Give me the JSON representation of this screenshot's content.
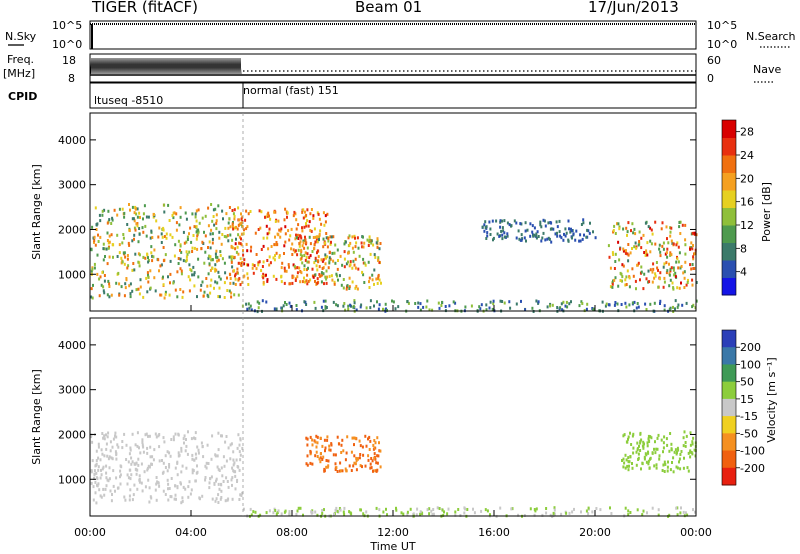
{
  "header": {
    "title": "TIGER (fitACF)",
    "beam": "Beam 01",
    "date": "17/Jun/2013"
  },
  "top_panels": {
    "nsky": {
      "label": "N.Sky",
      "ticks": [
        "10^5",
        "10^0"
      ],
      "right_ticks": [
        "10^5",
        "10^0"
      ],
      "right_label": "N.Search"
    },
    "freq": {
      "label_line1": "Freq.",
      "label_line2": "[MHz]",
      "ticks": [
        "18",
        "8"
      ],
      "right_ticks": [
        "60",
        "0"
      ],
      "right_label": "Nave"
    },
    "cpid": {
      "label": "CPID",
      "segments": [
        "ltuseq -8510",
        "normal (fast) 151"
      ],
      "segment_change_hour": 6
    }
  },
  "chart_data": [
    {
      "type": "heatmap",
      "name": "power",
      "xlabel": "Time UT",
      "ylabel": "Slant Range [km]",
      "xlim": [
        0,
        24
      ],
      "ylim": [
        180,
        4600
      ],
      "x_ticks": [
        "00:00",
        "04:00",
        "08:00",
        "12:00",
        "16:00",
        "20:00",
        "00:00"
      ],
      "y_ticks": [
        1000,
        2000,
        3000,
        4000
      ],
      "colorbar": {
        "label": "Power [dB]",
        "ticks": [
          4,
          8,
          12,
          16,
          20,
          24,
          28
        ],
        "range": [
          0,
          30
        ],
        "colors": [
          "#1414e6",
          "#2a4fb0",
          "#3b7a6a",
          "#4e9a4e",
          "#8fbf3a",
          "#e6d020",
          "#f5a020",
          "#f07010",
          "#e83010",
          "#d80000"
        ]
      },
      "echo_regions": [
        {
          "t0": 0.0,
          "t1": 6.0,
          "r0": 500,
          "r1": 2600,
          "value_range": [
            6,
            24
          ]
        },
        {
          "t0": 5.5,
          "t1": 9.5,
          "r0": 800,
          "r1": 2500,
          "value_range": [
            16,
            28
          ]
        },
        {
          "t0": 8.0,
          "t1": 11.5,
          "r0": 700,
          "r1": 1900,
          "value_range": [
            8,
            26
          ]
        },
        {
          "t0": 15.5,
          "t1": 20.0,
          "r0": 1750,
          "r1": 2250,
          "value_range": [
            3,
            9
          ]
        },
        {
          "t0": 20.5,
          "t1": 24.0,
          "r0": 700,
          "r1": 2200,
          "value_range": [
            8,
            28
          ]
        },
        {
          "t0": 6.0,
          "t1": 24.0,
          "r0": 200,
          "r1": 450,
          "value_range": [
            3,
            14
          ]
        }
      ]
    },
    {
      "type": "heatmap",
      "name": "velocity",
      "xlabel": "Time UT",
      "ylabel": "Slant Range [km]",
      "xlim": [
        0,
        24
      ],
      "ylim": [
        180,
        4600
      ],
      "x_ticks": [
        "00:00",
        "04:00",
        "08:00",
        "12:00",
        "16:00",
        "20:00",
        "00:00"
      ],
      "y_ticks": [
        1000,
        2000,
        3000,
        4000
      ],
      "colorbar": {
        "label": "Velocity [m s⁻¹]",
        "ticks": [
          "200",
          "100",
          "50",
          "15",
          "-15",
          "-50",
          "-100",
          "-200"
        ],
        "colors": [
          "#2b3fb8",
          "#3a78a8",
          "#3f9a56",
          "#8ccd3c",
          "#c8c8c8",
          "#f0d020",
          "#f59020",
          "#f06010",
          "#e82010"
        ]
      },
      "echo_regions": [
        {
          "t0": 0.0,
          "t1": 6.0,
          "r0": 500,
          "r1": 2100,
          "value_range": [
            -15,
            15
          ]
        },
        {
          "t0": 8.5,
          "t1": 11.5,
          "r0": 1200,
          "r1": 2000,
          "value_range": [
            -200,
            -50
          ]
        },
        {
          "t0": 21.0,
          "t1": 24.0,
          "r0": 1200,
          "r1": 2100,
          "value_range": [
            15,
            50
          ]
        },
        {
          "t0": 6.0,
          "t1": 24.0,
          "r0": 200,
          "r1": 400,
          "value_range": [
            -15,
            50
          ]
        }
      ]
    }
  ]
}
